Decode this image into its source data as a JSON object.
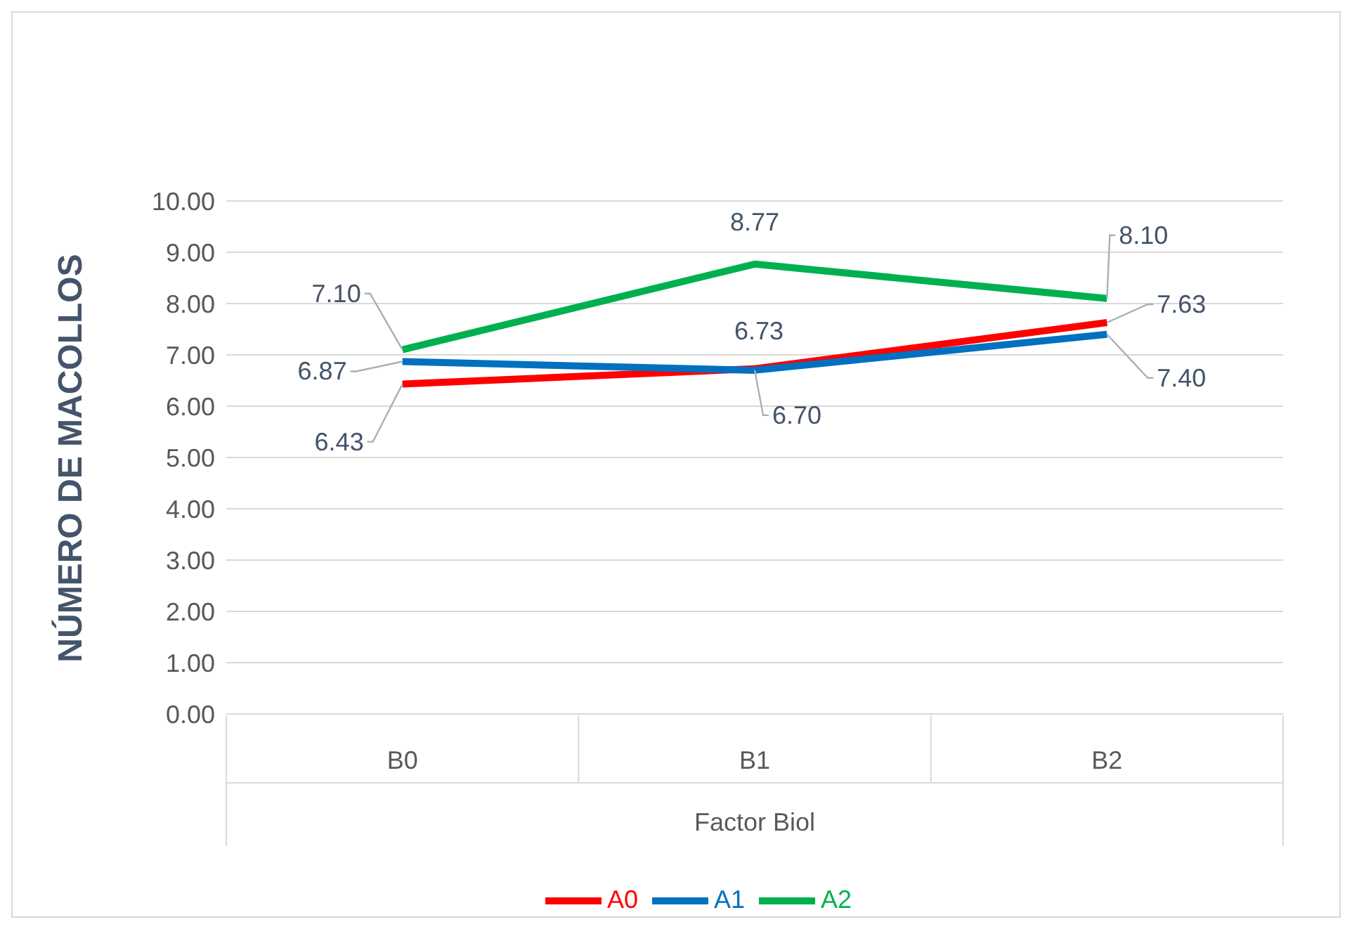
{
  "chart_data": {
    "type": "line",
    "xlabel": "Factor Biol",
    "ylabel": "NÚMERO DE MACOLLOS",
    "categories": [
      "B0",
      "B1",
      "B2"
    ],
    "series": [
      {
        "name": "A0",
        "color": "#ff0000",
        "values": [
          6.43,
          6.73,
          7.63
        ],
        "value_labels": [
          "6.43",
          "6.73",
          "7.63"
        ]
      },
      {
        "name": "A1",
        "color": "#0070c0",
        "values": [
          6.87,
          6.7,
          7.4
        ],
        "value_labels": [
          "6.87",
          "6.70",
          "7.40"
        ]
      },
      {
        "name": "A2",
        "color": "#00b050",
        "values": [
          7.1,
          8.77,
          8.1
        ],
        "value_labels": [
          "7.10",
          "8.77",
          "8.10"
        ]
      }
    ],
    "ylim": [
      0,
      10
    ],
    "yticks": [
      {
        "value": 0,
        "label": "0.00"
      },
      {
        "value": 1,
        "label": "1.00"
      },
      {
        "value": 2,
        "label": "2.00"
      },
      {
        "value": 3,
        "label": "3.00"
      },
      {
        "value": 4,
        "label": "4.00"
      },
      {
        "value": 5,
        "label": "5.00"
      },
      {
        "value": 6,
        "label": "6.00"
      },
      {
        "value": 7,
        "label": "7.00"
      },
      {
        "value": 8,
        "label": "8.00"
      },
      {
        "value": 9,
        "label": "9.00"
      },
      {
        "value": 10,
        "label": "10.00"
      }
    ],
    "grid": "y",
    "legend": "bottom",
    "marker": "none",
    "line_style": "solid"
  }
}
